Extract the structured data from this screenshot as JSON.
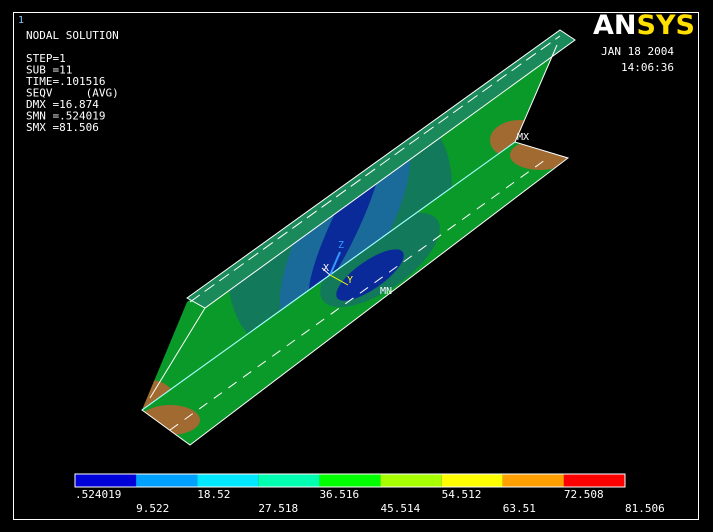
{
  "window_number": "1",
  "info": {
    "title": "NODAL SOLUTION",
    "lines": [
      "STEP=1",
      "SUB =11",
      "TIME=.101516",
      "SEQV     (AVG)",
      "DMX =16.874",
      "SMN =.524019",
      "SMX =81.506"
    ]
  },
  "logo": {
    "first": "AN",
    "second": "SYS"
  },
  "date": "JAN 18 2004",
  "time": "14:06:36",
  "markers": {
    "max": "MX",
    "min": "MN"
  },
  "triad": {
    "z": "Z",
    "x": "X",
    "y": "Y"
  },
  "legend": {
    "colors": [
      "#0000d8",
      "#00a0ff",
      "#00e8ff",
      "#00ffb0",
      "#00ff00",
      "#a8ff00",
      "#ffff00",
      "#ffa000",
      "#ff0000"
    ],
    "labels_top": [
      ".524019",
      "18.52",
      "36.516",
      "54.512",
      "72.508"
    ],
    "labels_bottom": [
      "9.522",
      "27.518",
      "45.514",
      "63.51",
      "81.506"
    ]
  }
}
